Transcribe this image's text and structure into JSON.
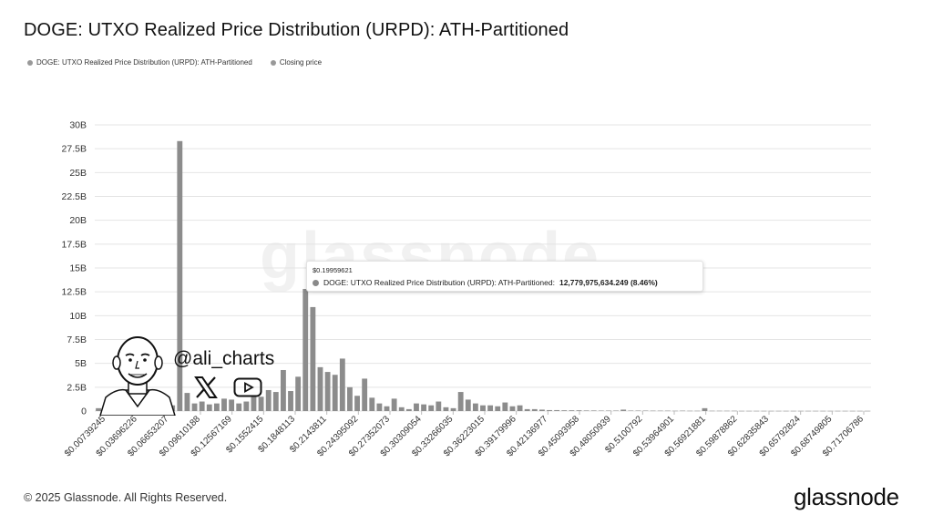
{
  "title": "DOGE: UTXO Realized Price Distribution (URPD): ATH-Partitioned",
  "legend": {
    "series_label": "DOGE: UTXO Realized Price Distribution (URPD): ATH-Partitioned",
    "closing_label": "Closing price"
  },
  "watermark": "glassnode",
  "tooltip": {
    "price": "$0.19959621",
    "series": "DOGE: UTXO Realized Price Distribution (URPD): ATH-Partitioned:",
    "value": "12,779,975,634.249 (8.46%)"
  },
  "overlay": {
    "handle": "@ali_charts",
    "x_icon": "x-logo-icon",
    "youtube_icon": "youtube-play-icon",
    "avatar": "cartoon-avatar"
  },
  "footer": {
    "copyright": "© 2025 Glassnode. All Rights Reserved.",
    "brand": "glassnode"
  },
  "colors": {
    "bar": "#8c8c8c",
    "grid": "#e4e4e4",
    "axis_text": "#333333"
  },
  "chart_data": {
    "type": "bar",
    "title": "DOGE: UTXO Realized Price Distribution (URPD): ATH-Partitioned",
    "ylabel": "",
    "xlabel": "",
    "ylim": [
      0,
      30000000000
    ],
    "yticks": [
      "0",
      "2.5B",
      "5B",
      "7.5B",
      "10B",
      "12.5B",
      "15B",
      "17.5B",
      "20B",
      "22.5B",
      "25B",
      "27.5B",
      "30B"
    ],
    "xtick_labels": [
      "$0.00739245",
      "$0.03696226",
      "$0.06653207",
      "$0.09610188",
      "$0.12567169",
      "$0.1552415",
      "$0.1848113",
      "$0.2143811",
      "$0.24395092",
      "$0.27352073",
      "$0.30309054",
      "$0.33266035",
      "$0.36223015",
      "$0.39179996",
      "$0.42136977",
      "$0.45093958",
      "$0.48050939",
      "$0.5100792",
      "$0.53964901",
      "$0.56921881",
      "$0.59878862",
      "$0.62835843",
      "$0.65792824",
      "$0.68749805",
      "$0.71706786"
    ],
    "grid": true,
    "legend_position": "top-left",
    "series": [
      {
        "name": "DOGE: UTXO Realized Price Distribution (URPD): ATH-Partitioned",
        "values": [
          300000000.0,
          200000000.0,
          600000000.0,
          100000000.0,
          200000000.0,
          300000000.0,
          100000000.0,
          100000000.0,
          200000000.0,
          800000000.0,
          600000000.0,
          28300000000.0,
          1900000000.0,
          800000000.0,
          1000000000.0,
          700000000.0,
          800000000.0,
          1300000000.0,
          1200000000.0,
          800000000.0,
          1000000000.0,
          1500000000.0,
          1500000000.0,
          2200000000.0,
          2000000000.0,
          4300000000.0,
          2100000000.0,
          3600000000.0,
          12800000000.0,
          10900000000.0,
          4600000000.0,
          4100000000.0,
          3800000000.0,
          5500000000.0,
          2500000000.0,
          1600000000.0,
          3400000000.0,
          1400000000.0,
          800000000.0,
          500000000.0,
          1300000000.0,
          400000000.0,
          200000000.0,
          800000000.0,
          700000000.0,
          600000000.0,
          1000000000.0,
          400000000.0,
          300000000.0,
          2000000000.0,
          1200000000.0,
          800000000.0,
          600000000.0,
          600000000.0,
          500000000.0,
          900000000.0,
          500000000.0,
          600000000.0,
          200000000.0,
          200000000.0,
          150000000.0,
          100000000.0,
          100000000.0,
          80000000.0,
          80000000.0,
          80000000.0,
          60000000.0,
          60000000.0,
          50000000.0,
          50000000.0,
          50000000.0,
          150000000.0,
          50000000.0,
          50000000.0,
          50000000.0,
          40000000.0,
          40000000.0,
          40000000.0,
          30000000.0,
          40000000.0,
          30000000.0,
          30000000.0,
          300000000.0,
          30000000.0,
          30000000.0,
          30000000.0,
          30000000.0,
          20000000.0,
          20000000.0,
          20000000.0,
          20000000.0,
          20000000.0,
          20000000.0,
          20000000.0,
          20000000.0,
          20000000.0,
          20000000.0,
          20000000.0,
          20000000.0,
          20000000.0,
          20000000.0,
          20000000.0,
          20000000.0,
          20000000.0,
          20000000.0
        ]
      }
    ]
  }
}
